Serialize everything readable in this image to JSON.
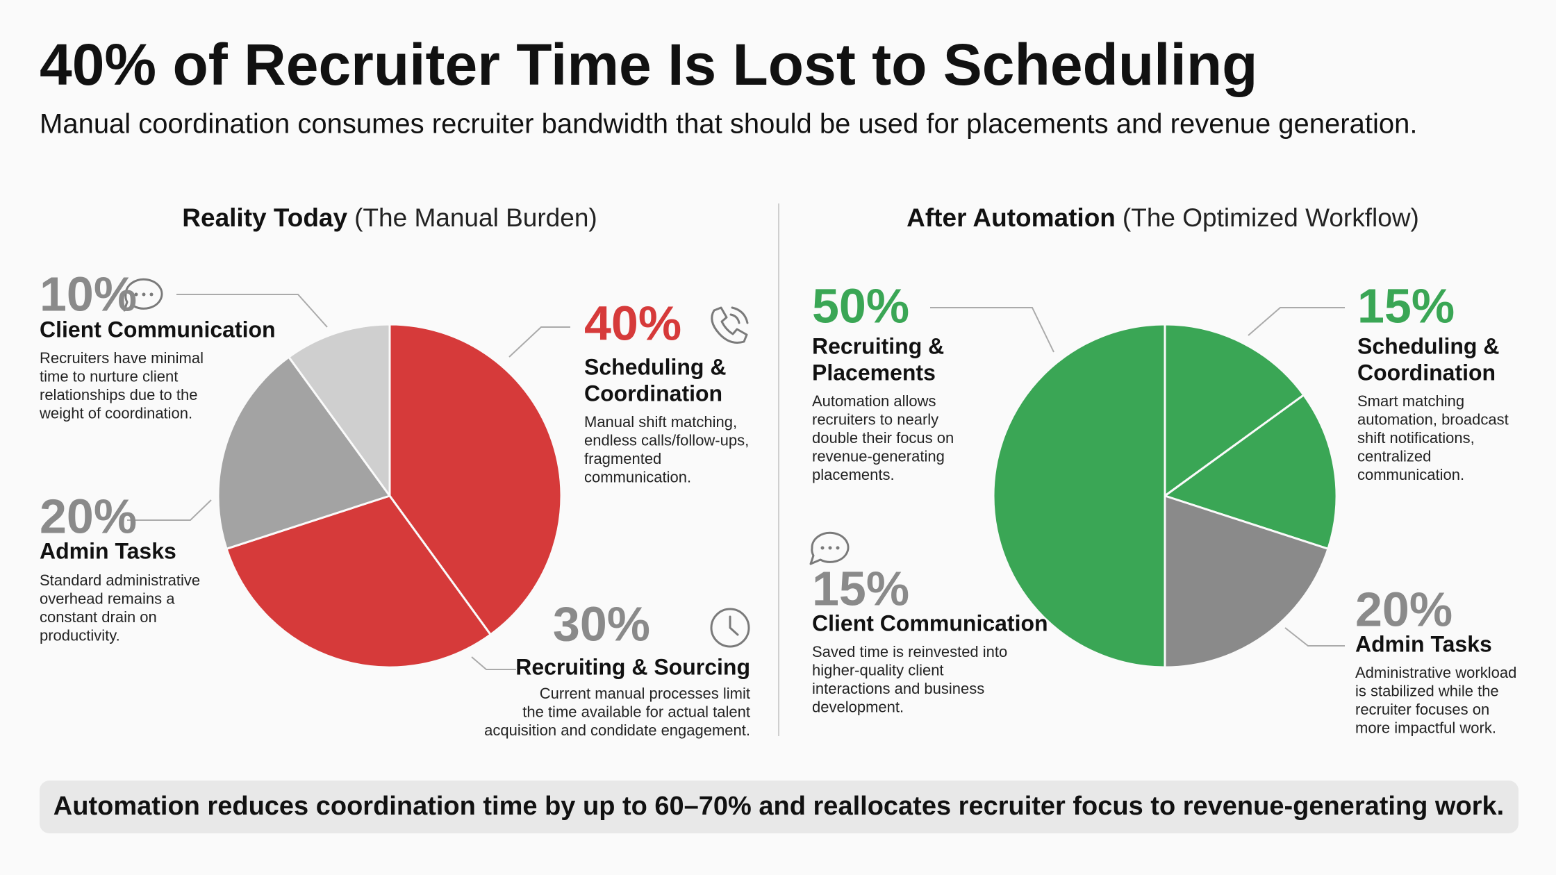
{
  "title": "40% of Recruiter Time Is Lost to Scheduling",
  "subtitle": "Manual coordination consumes recruiter bandwidth that should be used for placements and revenue generation.",
  "footer": "Automation reduces coordination time by up to 60–70% and reallocates recruiter focus to revenue-generating work.",
  "chart_data": [
    {
      "type": "pie",
      "title": "Reality Today",
      "subtitle": "(The Manual Burden)",
      "categories": [
        [
          "Scheduling &",
          "Coordination"
        ],
        [
          "Recruiting & Sourcing"
        ],
        [
          "Admin Tasks"
        ],
        [
          "Client Communication"
        ]
      ],
      "values": [
        40,
        30,
        20,
        10
      ],
      "value_labels": [
        "40%",
        "30%",
        "20%",
        "10%"
      ],
      "colors": [
        "#d63a3a",
        "#d63a3a",
        "#a3a3a3",
        "#cfcfcf"
      ],
      "label_colors": [
        "#d63a3a",
        "#8a8a8a",
        "#8a8a8a",
        "#8a8a8a"
      ],
      "descriptions": [
        [
          "Manual shift matching,",
          "endless calls/follow-ups,",
          "fragmented",
          "communication."
        ],
        [
          "Current manual processes limit",
          "the time available for actual talent",
          "acquisition and condidate engagement."
        ],
        [
          "Standard administrative",
          "overhead remains a",
          "constant drain on",
          "productivity."
        ],
        [
          "Recruiters have minimal",
          "time to nurture client",
          "relationships due to the",
          "weight of coordination."
        ]
      ]
    },
    {
      "type": "pie",
      "title": "After Automation",
      "subtitle": "(The Optimized Workflow)",
      "categories": [
        [
          "Scheduling &",
          "Coordination"
        ],
        [
          "Client Communication"
        ],
        [
          "Admin Tasks"
        ],
        [
          "Recruiting &",
          "Placements"
        ]
      ],
      "values": [
        15,
        15,
        20,
        50
      ],
      "value_labels": [
        "15%",
        "15%",
        "20%",
        "50%"
      ],
      "colors": [
        "#3aa655",
        "#3aa655",
        "#8a8a8a",
        "#3aa655"
      ],
      "label_colors": [
        "#3aa655",
        "#8a8a8a",
        "#8a8a8a",
        "#3aa655"
      ],
      "descriptions": [
        [
          "Smart matching",
          "automation, broadcast",
          "shift notifications,",
          "centralized",
          "communication."
        ],
        [
          "Saved time is reinvested into",
          "higher-quality client",
          "interactions and business",
          "development."
        ],
        [
          "Administrative workload",
          "is stabilized while the",
          "recruiter focuses on",
          "more impactful work."
        ],
        [
          "Automation allows",
          "recruiters to nearly",
          "double their focus on",
          "revenue-generating",
          "placements."
        ]
      ]
    }
  ]
}
